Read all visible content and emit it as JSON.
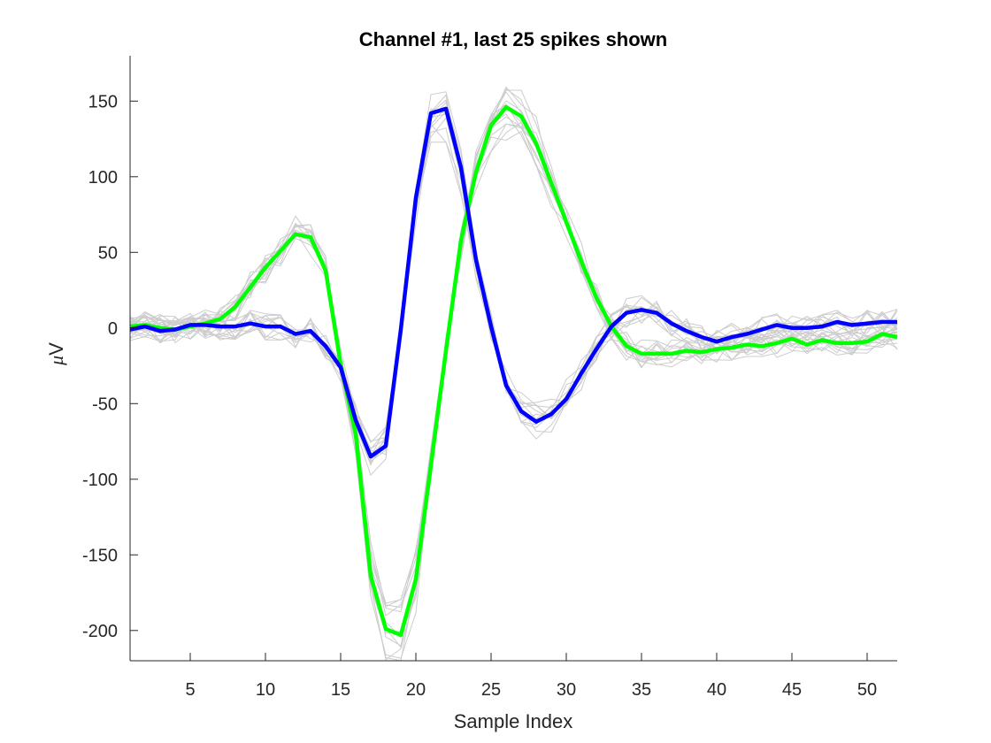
{
  "chart_data": {
    "type": "line",
    "title": "Channel #1, last 25 spikes shown",
    "xlabel": "Sample Index",
    "ylabel_greek": "μ",
    "ylabel_unit": "V",
    "ylabel": "μV",
    "xlim": [
      1,
      52
    ],
    "ylim": [
      -220,
      180
    ],
    "xticks": [
      5,
      10,
      15,
      20,
      25,
      30,
      35,
      40,
      45,
      50
    ],
    "yticks": [
      150,
      100,
      50,
      0,
      -50,
      -100,
      -150,
      -200
    ],
    "xtick_labels": [
      "5",
      "10",
      "15",
      "20",
      "25",
      "30",
      "35",
      "40",
      "45",
      "50"
    ],
    "ytick_labels": [
      "150",
      "100",
      "50",
      "0",
      "-50",
      "-100",
      "-150",
      "-200"
    ],
    "grid": false,
    "legend": null,
    "background_traces": {
      "count": 25,
      "color": "#cccccc",
      "description": "individual spike waveforms (gray), scattered around the two mean templates"
    },
    "x": [
      1,
      2,
      3,
      4,
      5,
      6,
      7,
      8,
      9,
      10,
      11,
      12,
      13,
      14,
      15,
      16,
      17,
      18,
      19,
      20,
      21,
      22,
      23,
      24,
      25,
      26,
      27,
      28,
      29,
      30,
      31,
      32,
      33,
      34,
      35,
      36,
      37,
      38,
      39,
      40,
      41,
      42,
      43,
      44,
      45,
      46,
      47,
      48,
      49,
      50,
      51,
      52
    ],
    "series": [
      {
        "name": "template-green",
        "color": "#00ff00",
        "values": [
          1,
          2,
          0,
          -1,
          1,
          3,
          6,
          14,
          27,
          40,
          51,
          62,
          60,
          38,
          -24,
          -70,
          -164,
          -199,
          -203,
          -166,
          -91,
          -15,
          58,
          103,
          134,
          146,
          140,
          122,
          96,
          70,
          44,
          20,
          1,
          -12,
          -17,
          -17,
          -17,
          -15,
          -16,
          -14,
          -13,
          -11,
          -12,
          -10,
          -7,
          -11,
          -8,
          -10,
          -10,
          -9,
          -4,
          -6
        ]
      },
      {
        "name": "template-blue",
        "color": "#0000ff",
        "values": [
          -1,
          1,
          -2,
          -1,
          2,
          2,
          1,
          1,
          3,
          1,
          1,
          -4,
          -2,
          -12,
          -26,
          -61,
          -85,
          -78,
          -1,
          86,
          142,
          145,
          106,
          45,
          1,
          -38,
          -55,
          -62,
          -57,
          -47,
          -30,
          -14,
          1,
          10,
          12,
          10,
          3,
          -2,
          -6,
          -9,
          -6,
          -4,
          -1,
          2,
          0,
          0,
          1,
          4,
          2,
          3,
          4,
          4
        ]
      }
    ]
  },
  "colors": {
    "axis": "#262626",
    "traces": "#cccccc",
    "green": "#00ff00",
    "blue": "#0000ff"
  }
}
